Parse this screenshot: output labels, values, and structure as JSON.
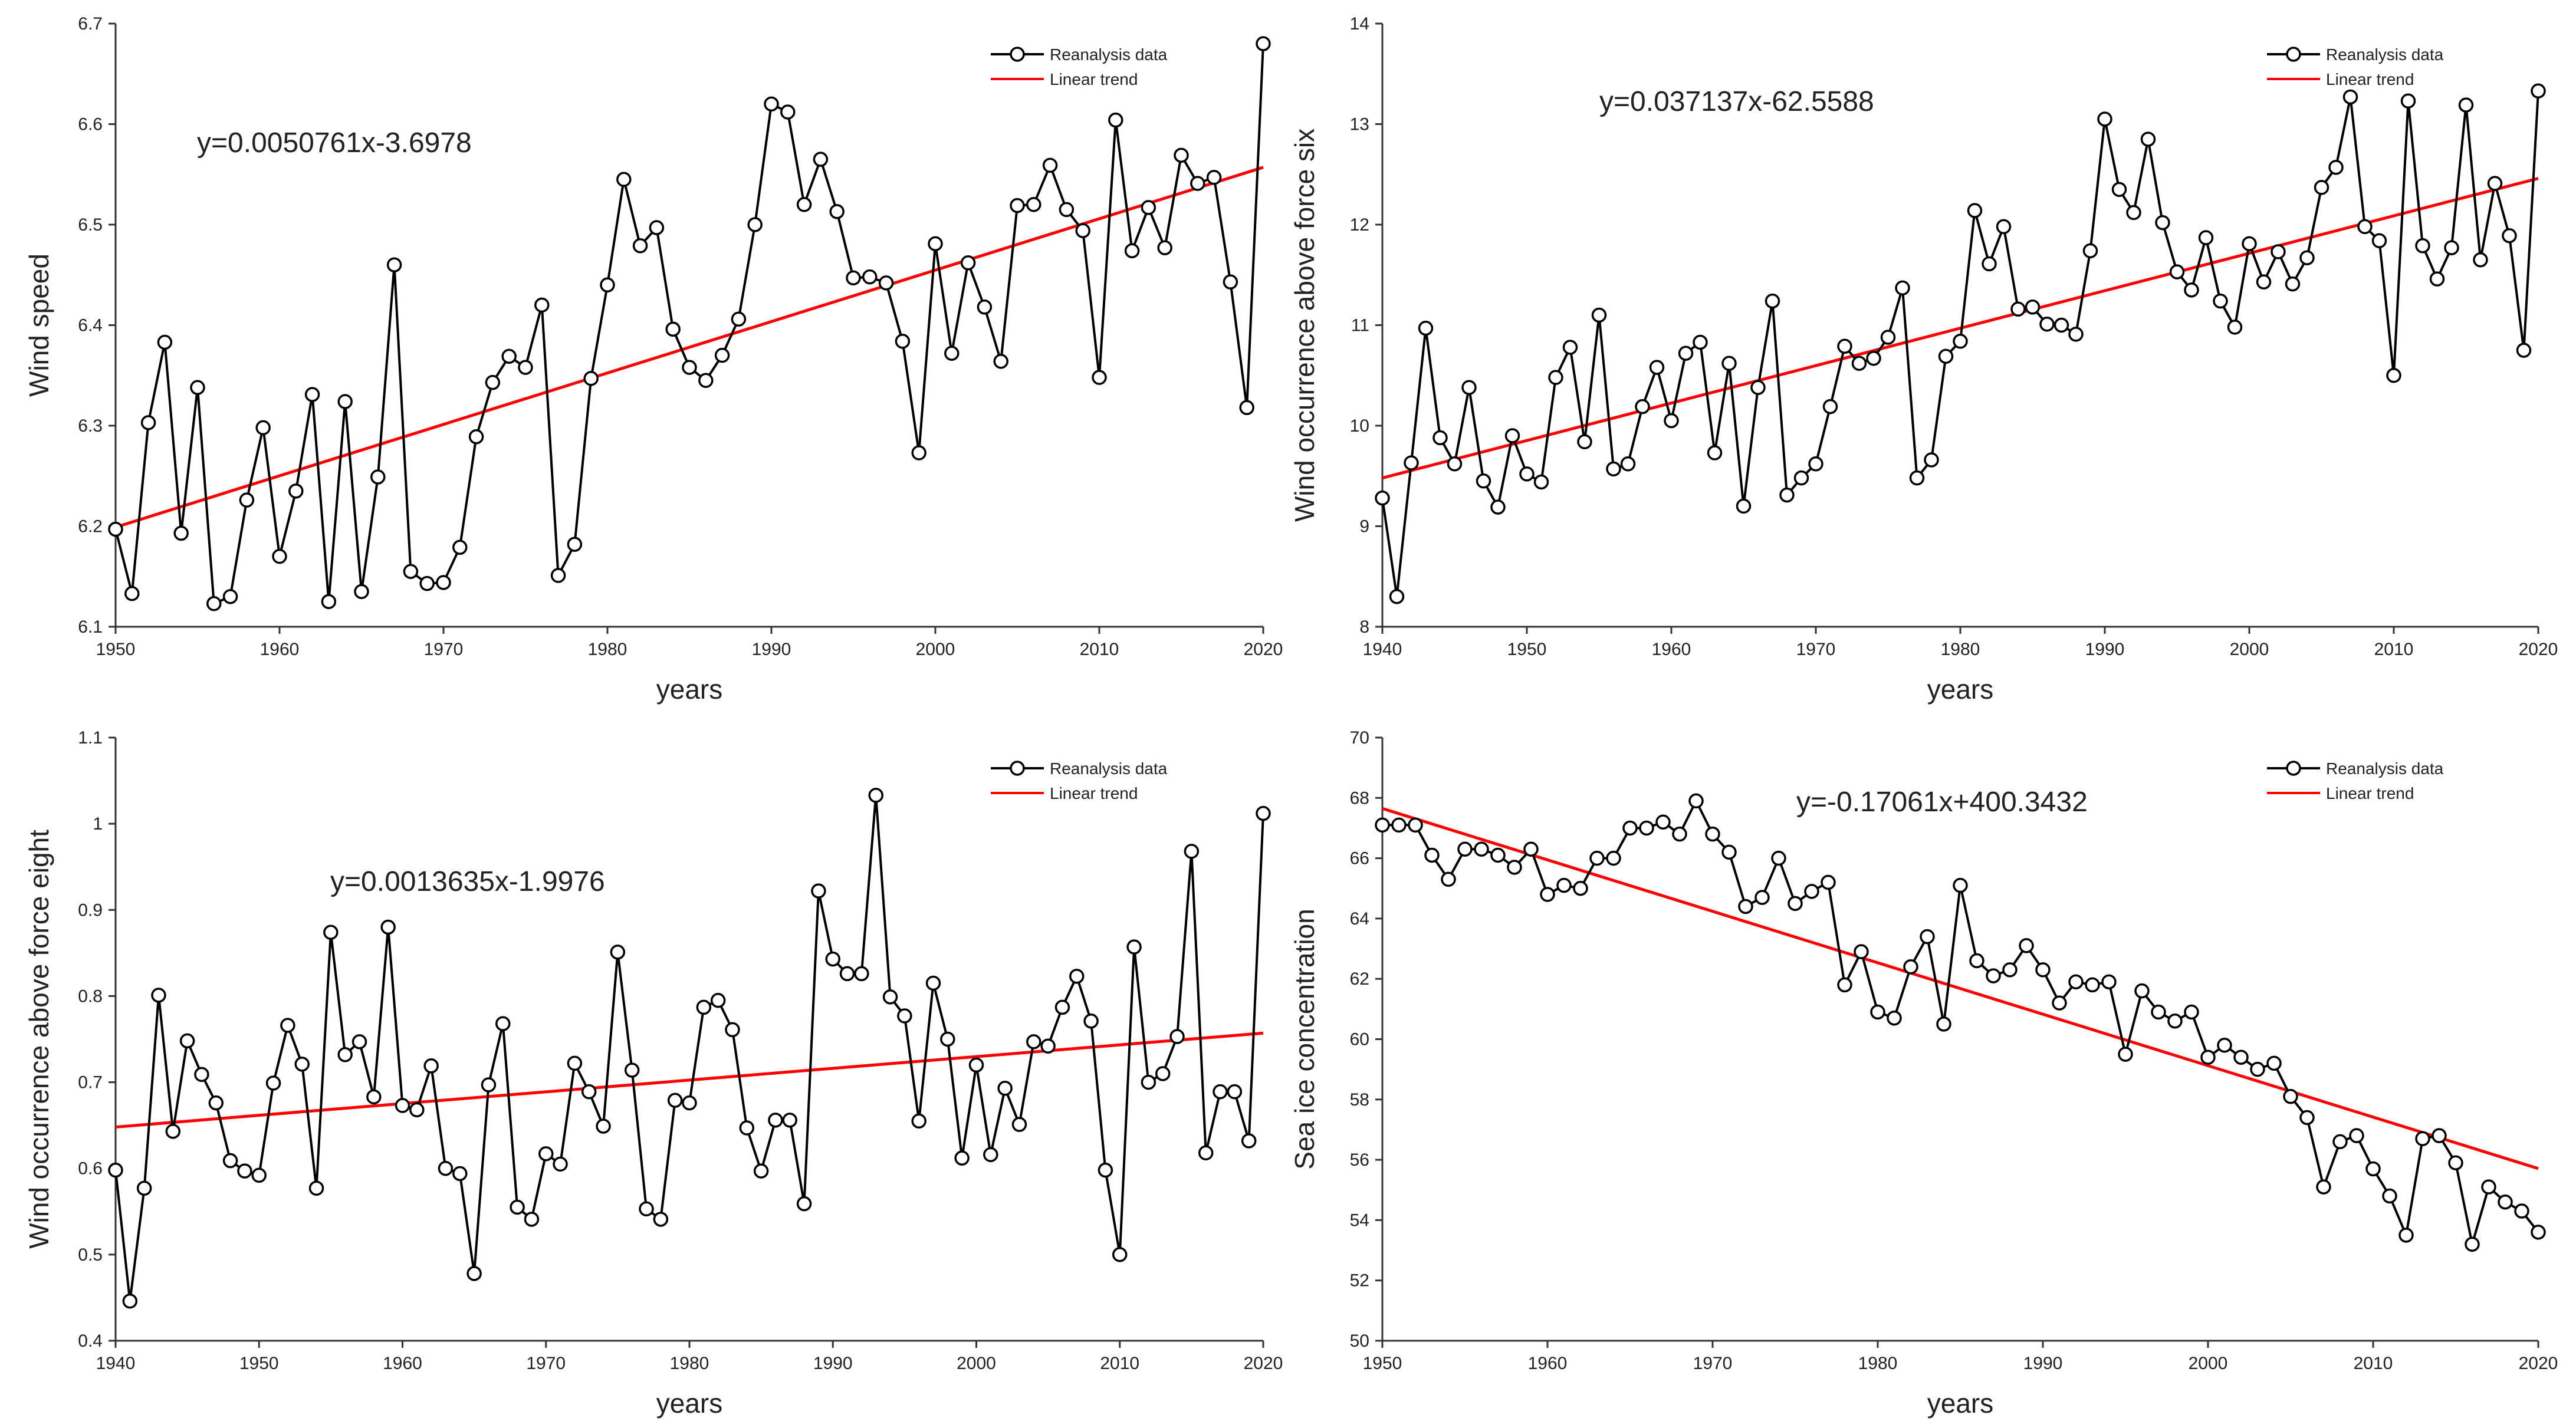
{
  "chart_data": [
    {
      "type": "line",
      "xlabel": "years",
      "ylabel": "Wind speed",
      "xlim": [
        1950,
        2020
      ],
      "ylim": [
        6.1,
        6.7
      ],
      "xticks": [
        "1950",
        "1960",
        "1970",
        "1980",
        "1990",
        "2000",
        "2010",
        "2020"
      ],
      "yticks": [
        "6.1",
        "6.2",
        "6.3",
        "6.4",
        "6.5",
        "6.6",
        "6.7"
      ],
      "equation": "y=0.0050761x-3.6978",
      "legend": [
        "Reanalysis data",
        "Linear trend"
      ],
      "x_start": 1950,
      "series": [
        {
          "name": "Reanalysis data",
          "values": [
            6.197,
            6.133,
            6.303,
            6.383,
            6.193,
            6.338,
            6.123,
            6.13,
            6.226,
            6.298,
            6.17,
            6.235,
            6.331,
            6.125,
            6.324,
            6.135,
            6.249,
            6.46,
            6.155,
            6.143,
            6.144,
            6.179,
            6.289,
            6.343,
            6.369,
            6.358,
            6.42,
            6.151,
            6.182,
            6.347,
            6.44,
            6.545,
            6.479,
            6.497,
            6.396,
            6.358,
            6.345,
            6.37,
            6.406,
            6.5,
            6.62,
            6.612,
            6.52,
            6.565,
            6.513,
            6.447,
            6.448,
            6.442,
            6.384,
            6.273,
            6.481,
            6.372,
            6.462,
            6.418,
            6.364,
            6.519,
            6.52,
            6.559,
            6.515,
            6.494,
            6.348,
            6.604,
            6.474,
            6.517,
            6.477,
            6.569,
            6.541,
            6.547,
            6.443,
            6.318,
            6.68
          ]
        }
      ],
      "trend": {
        "name": "Linear trend",
        "x": [
          1950,
          2020
        ],
        "y": [
          6.199,
          6.557
        ]
      }
    },
    {
      "type": "line",
      "xlabel": "years",
      "ylabel": "Wind occurrence above force six",
      "xlim": [
        1940,
        2020
      ],
      "ylim": [
        8,
        14
      ],
      "xticks": [
        "1940",
        "1950",
        "1960",
        "1970",
        "1980",
        "1990",
        "2000",
        "2010",
        "2020"
      ],
      "yticks": [
        "8",
        "9",
        "10",
        "11",
        "12",
        "13",
        "14"
      ],
      "equation": "y=0.037137x-62.5588",
      "legend": [
        "Reanalysis data",
        "Linear trend"
      ],
      "x_start": 1940,
      "series": [
        {
          "name": "Reanalysis data",
          "values": [
            9.28,
            8.3,
            9.63,
            10.97,
            9.88,
            9.62,
            10.38,
            9.45,
            9.19,
            9.9,
            9.52,
            9.44,
            10.48,
            10.78,
            9.84,
            11.1,
            9.57,
            9.62,
            10.19,
            10.58,
            10.05,
            10.72,
            10.83,
            9.73,
            10.62,
            9.2,
            10.38,
            11.24,
            9.31,
            9.48,
            9.62,
            10.19,
            10.79,
            10.62,
            10.67,
            10.88,
            11.37,
            9.48,
            9.66,
            10.69,
            10.84,
            12.14,
            11.61,
            11.98,
            11.16,
            11.18,
            11.01,
            11.0,
            10.91,
            11.74,
            13.05,
            12.35,
            12.12,
            12.85,
            12.02,
            11.53,
            11.35,
            11.87,
            11.24,
            10.98,
            11.81,
            11.43,
            11.73,
            11.41,
            11.67,
            12.37,
            12.57,
            13.27,
            11.98,
            11.84,
            10.5,
            13.23,
            11.79,
            11.46,
            11.77,
            13.19,
            11.65,
            12.41,
            11.89,
            10.75,
            13.33
          ]
        }
      ],
      "trend": {
        "name": "Linear trend",
        "x": [
          1940,
          2020
        ],
        "y": [
          9.48,
          12.46
        ]
      }
    },
    {
      "type": "line",
      "xlabel": "years",
      "ylabel": "Wind occurrence above force eight",
      "xlim": [
        1940,
        2020
      ],
      "ylim": [
        0.4,
        1.1
      ],
      "xticks": [
        "1940",
        "1950",
        "1960",
        "1970",
        "1980",
        "1990",
        "2000",
        "2010",
        "2020"
      ],
      "yticks": [
        "0.4",
        "0.5",
        "0.6",
        "0.7",
        "0.8",
        "0.9",
        "1",
        "1.1"
      ],
      "equation": "y=0.0013635x-1.9976",
      "legend": [
        "Reanalysis data",
        "Linear trend"
      ],
      "x_start": 1940,
      "series": [
        {
          "name": "Reanalysis data",
          "values": [
            0.598,
            0.446,
            0.577,
            0.801,
            0.643,
            0.748,
            0.709,
            0.676,
            0.609,
            0.597,
            0.592,
            0.699,
            0.766,
            0.721,
            0.577,
            0.874,
            0.732,
            0.747,
            0.683,
            0.88,
            0.673,
            0.668,
            0.719,
            0.6,
            0.594,
            0.478,
            0.697,
            0.768,
            0.555,
            0.541,
            0.617,
            0.605,
            0.722,
            0.689,
            0.649,
            0.851,
            0.714,
            0.553,
            0.541,
            0.679,
            0.676,
            0.787,
            0.795,
            0.761,
            0.647,
            0.597,
            0.656,
            0.656,
            0.559,
            0.922,
            0.843,
            0.826,
            0.826,
            1.033,
            0.799,
            0.777,
            0.655,
            0.815,
            0.75,
            0.612,
            0.72,
            0.616,
            0.693,
            0.651,
            0.747,
            0.742,
            0.787,
            0.823,
            0.771,
            0.598,
            0.5,
            0.857,
            0.7,
            0.71,
            0.753,
            0.968,
            0.618,
            0.689,
            0.689,
            0.632,
            1.012
          ]
        }
      ],
      "trend": {
        "name": "Linear trend",
        "x": [
          1940,
          2020
        ],
        "y": [
          0.648,
          0.757
        ]
      }
    },
    {
      "type": "line",
      "xlabel": "years",
      "ylabel": "Sea ice concentration",
      "xlim": [
        1950,
        2020
      ],
      "ylim": [
        50,
        70
      ],
      "xticks": [
        "1950",
        "1960",
        "1970",
        "1980",
        "1990",
        "2000",
        "2010",
        "2020"
      ],
      "yticks": [
        "50",
        "52",
        "54",
        "56",
        "58",
        "60",
        "62",
        "64",
        "66",
        "68",
        "70"
      ],
      "equation": "y=-0.17061x+400.3432",
      "legend": [
        "Reanalysis data",
        "Linear trend"
      ],
      "x_start": 1950,
      "series": [
        {
          "name": "Reanalysis data",
          "values": [
            67.1,
            67.1,
            67.1,
            66.1,
            65.3,
            66.3,
            66.3,
            66.1,
            65.7,
            66.3,
            64.8,
            65.1,
            65.0,
            66.0,
            66.0,
            67.0,
            67.0,
            67.2,
            66.8,
            67.9,
            66.8,
            66.2,
            64.4,
            64.7,
            66.0,
            64.5,
            64.9,
            65.2,
            61.8,
            62.9,
            60.9,
            60.7,
            62.4,
            63.4,
            60.5,
            65.1,
            62.6,
            62.1,
            62.3,
            63.1,
            62.3,
            61.2,
            61.9,
            61.8,
            61.9,
            59.5,
            61.6,
            60.9,
            60.6,
            60.9,
            59.4,
            59.8,
            59.4,
            59.0,
            59.2,
            58.1,
            57.4,
            55.1,
            56.6,
            56.8,
            55.7,
            54.8,
            53.5,
            56.7,
            56.8,
            55.9,
            53.2,
            55.1,
            54.6,
            54.3,
            53.6
          ]
        }
      ],
      "trend": {
        "name": "Linear trend",
        "x": [
          1950,
          2020
        ],
        "y": [
          67.65,
          55.71
        ]
      }
    }
  ]
}
